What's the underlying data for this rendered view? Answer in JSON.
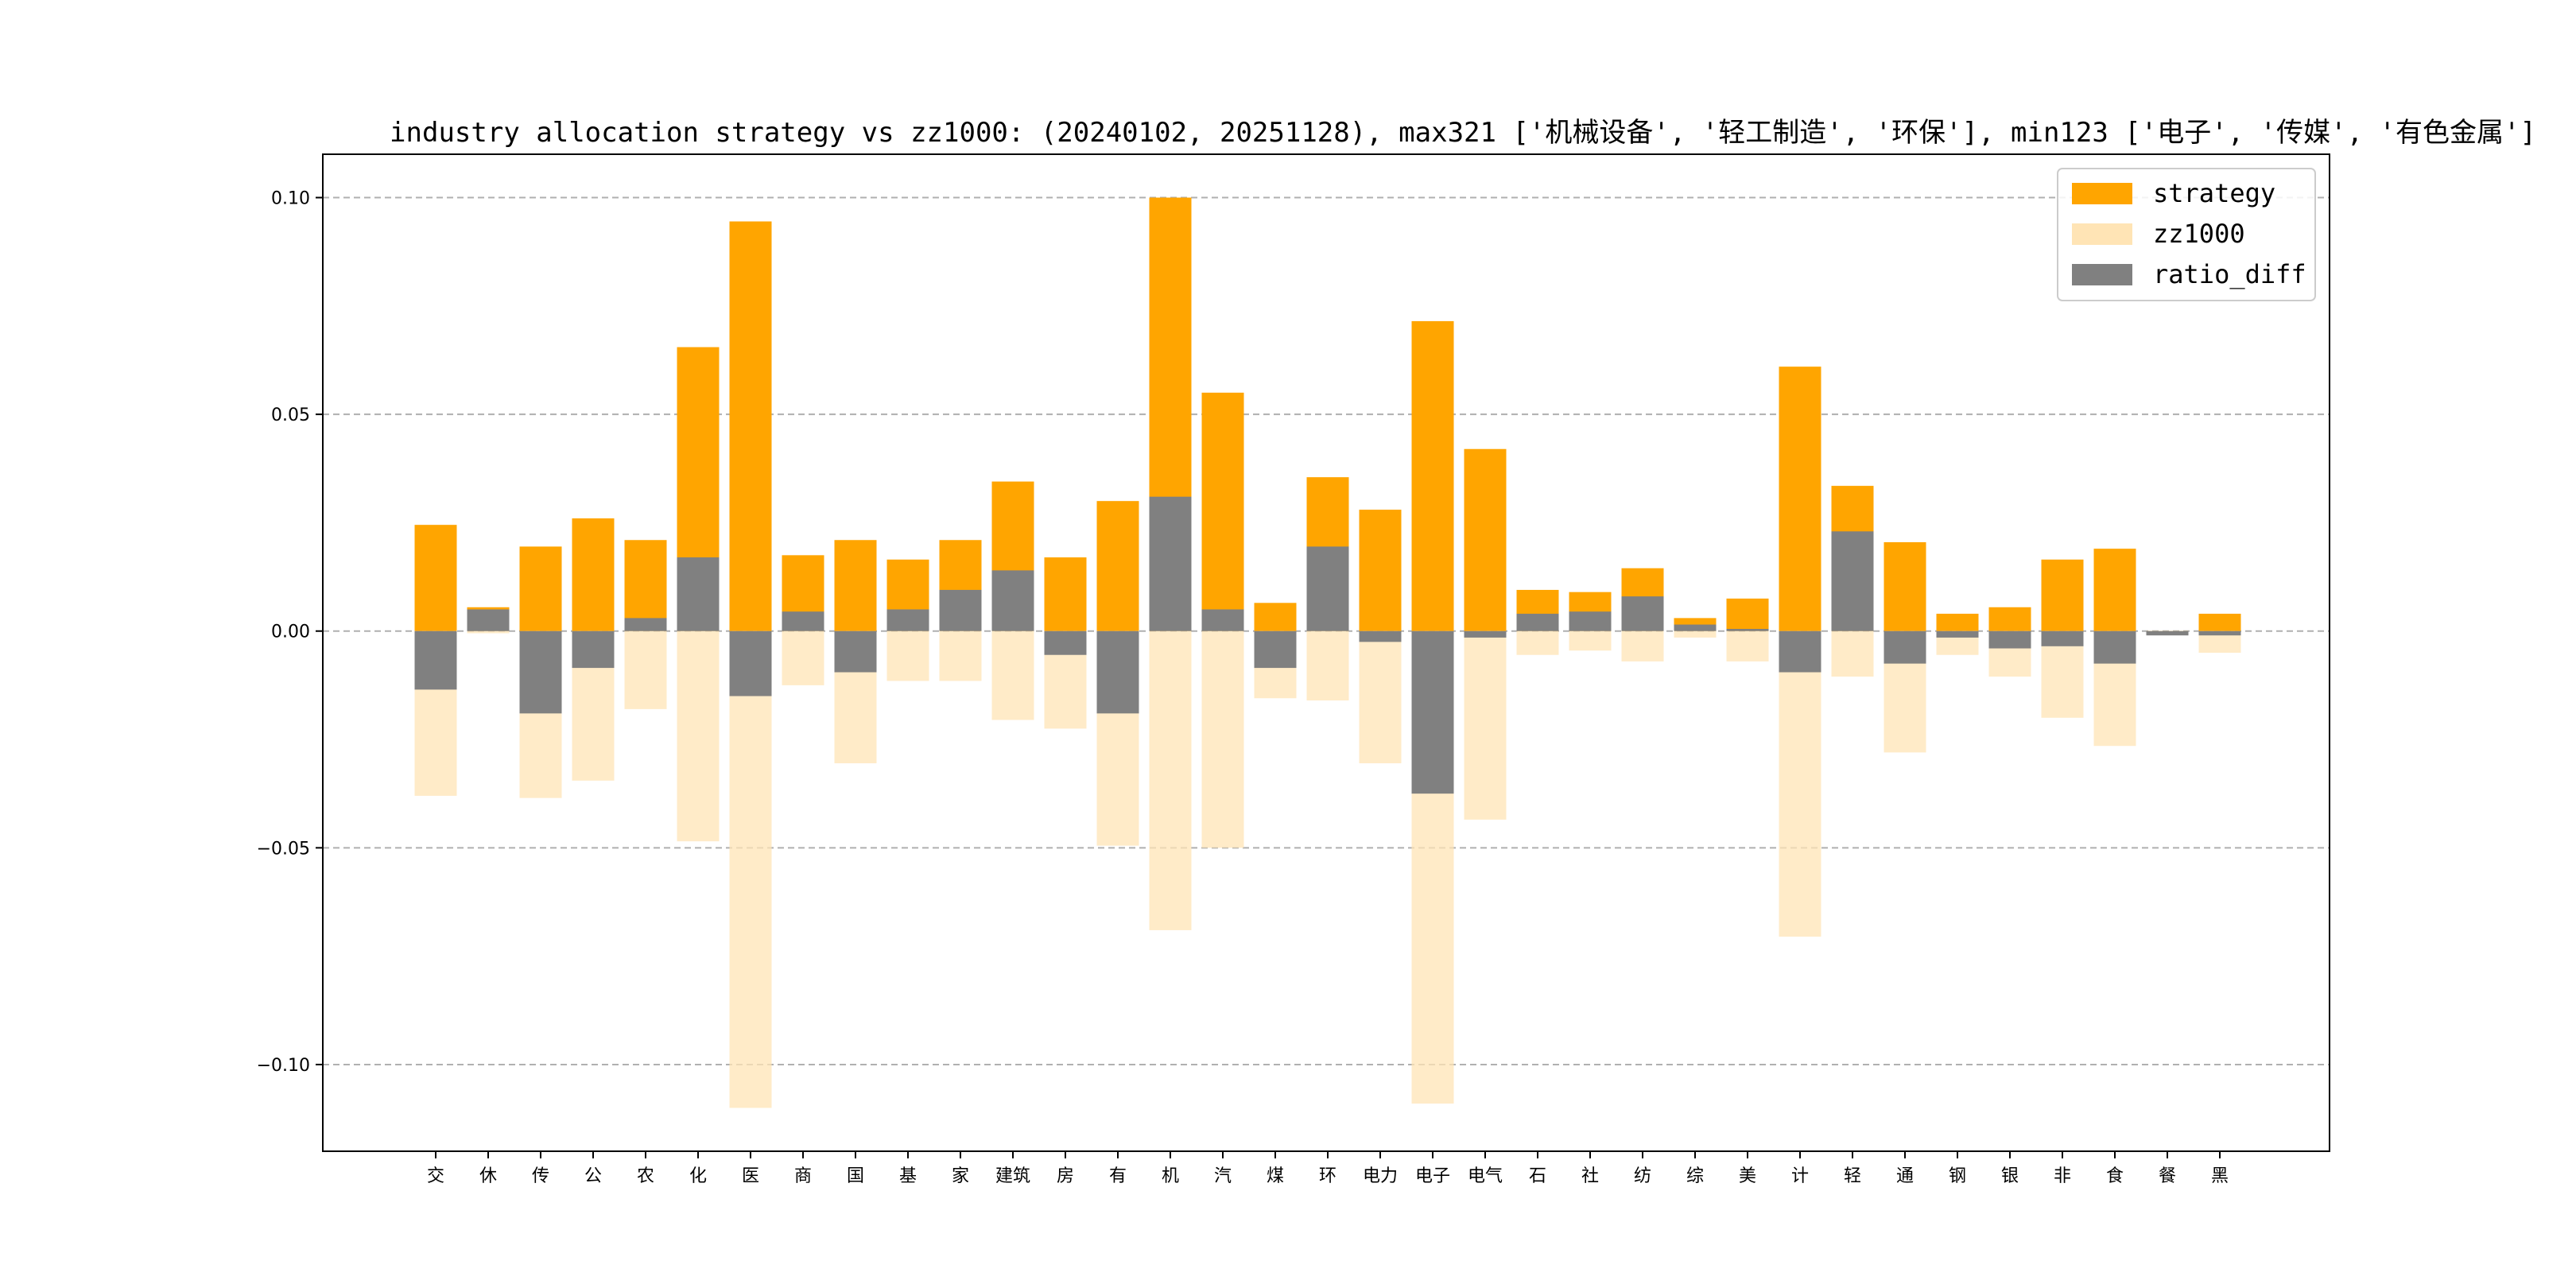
{
  "chart_data": {
    "type": "bar",
    "title": "industry allocation strategy vs zz1000: (20240102, 20251128), max321 ['机械设备', '轻工制造', '环保'], min123 ['电子', '传媒', '有色金属']",
    "xlabel": "",
    "ylabel": "",
    "ylim": [
      -0.12,
      0.11
    ],
    "yticks": [
      -0.1,
      -0.05,
      0.0,
      0.05,
      0.1
    ],
    "ytick_labels": [
      "−0.10",
      "−0.05",
      "0.00",
      "0.05",
      "0.10"
    ],
    "grid": "horizontal dashed",
    "legend_position": "top-right",
    "categories": [
      "交",
      "休",
      "传",
      "公",
      "农",
      "化",
      "医",
      "商",
      "国",
      "基",
      "家",
      "建筑",
      "房",
      "有",
      "机",
      "汽",
      "煤",
      "环",
      "电力",
      "电子",
      "电气",
      "石",
      "社",
      "纺",
      "综",
      "美",
      "计",
      "轻",
      "通",
      "钢",
      "银",
      "非",
      "食",
      "餐",
      "黑"
    ],
    "series": [
      {
        "name": "strategy",
        "color": "#FFA500",
        "values": [
          0.0245,
          0.0055,
          0.0195,
          0.026,
          0.021,
          0.0655,
          0.0945,
          0.0175,
          0.021,
          0.0165,
          0.021,
          0.0345,
          0.017,
          0.03,
          0.1,
          0.055,
          0.0065,
          0.0355,
          0.028,
          0.0715,
          0.042,
          0.0095,
          0.009,
          0.0145,
          0.003,
          0.0075,
          0.061,
          0.0335,
          0.0205,
          0.004,
          0.0055,
          0.0165,
          0.019,
          -0.0005,
          0.004
        ]
      },
      {
        "name": "zz1000",
        "color": "#FFE4B5",
        "values": [
          -0.038,
          -0.0005,
          -0.0385,
          -0.0345,
          -0.018,
          -0.0485,
          -0.11,
          -0.0125,
          -0.0305,
          -0.0115,
          -0.0115,
          -0.0205,
          -0.0225,
          -0.0495,
          -0.069,
          -0.05,
          -0.0155,
          -0.016,
          -0.0305,
          -0.109,
          -0.0435,
          -0.0055,
          -0.0045,
          -0.007,
          -0.0015,
          -0.007,
          -0.0705,
          -0.0105,
          -0.028,
          -0.0055,
          -0.0105,
          -0.02,
          -0.0265,
          -0.0005,
          -0.005
        ]
      },
      {
        "name": "ratio_diff",
        "color": "#808080",
        "values": [
          -0.0135,
          0.005,
          -0.019,
          -0.0085,
          0.003,
          0.017,
          -0.015,
          0.0045,
          -0.0095,
          0.005,
          0.0095,
          0.014,
          -0.0055,
          -0.019,
          0.031,
          0.005,
          -0.0085,
          0.0195,
          -0.0025,
          -0.0375,
          -0.0015,
          0.004,
          0.0045,
          0.008,
          0.0015,
          0.0005,
          -0.0095,
          0.023,
          -0.0075,
          -0.0015,
          -0.004,
          -0.0035,
          -0.0075,
          -0.001,
          -0.001
        ]
      }
    ]
  }
}
